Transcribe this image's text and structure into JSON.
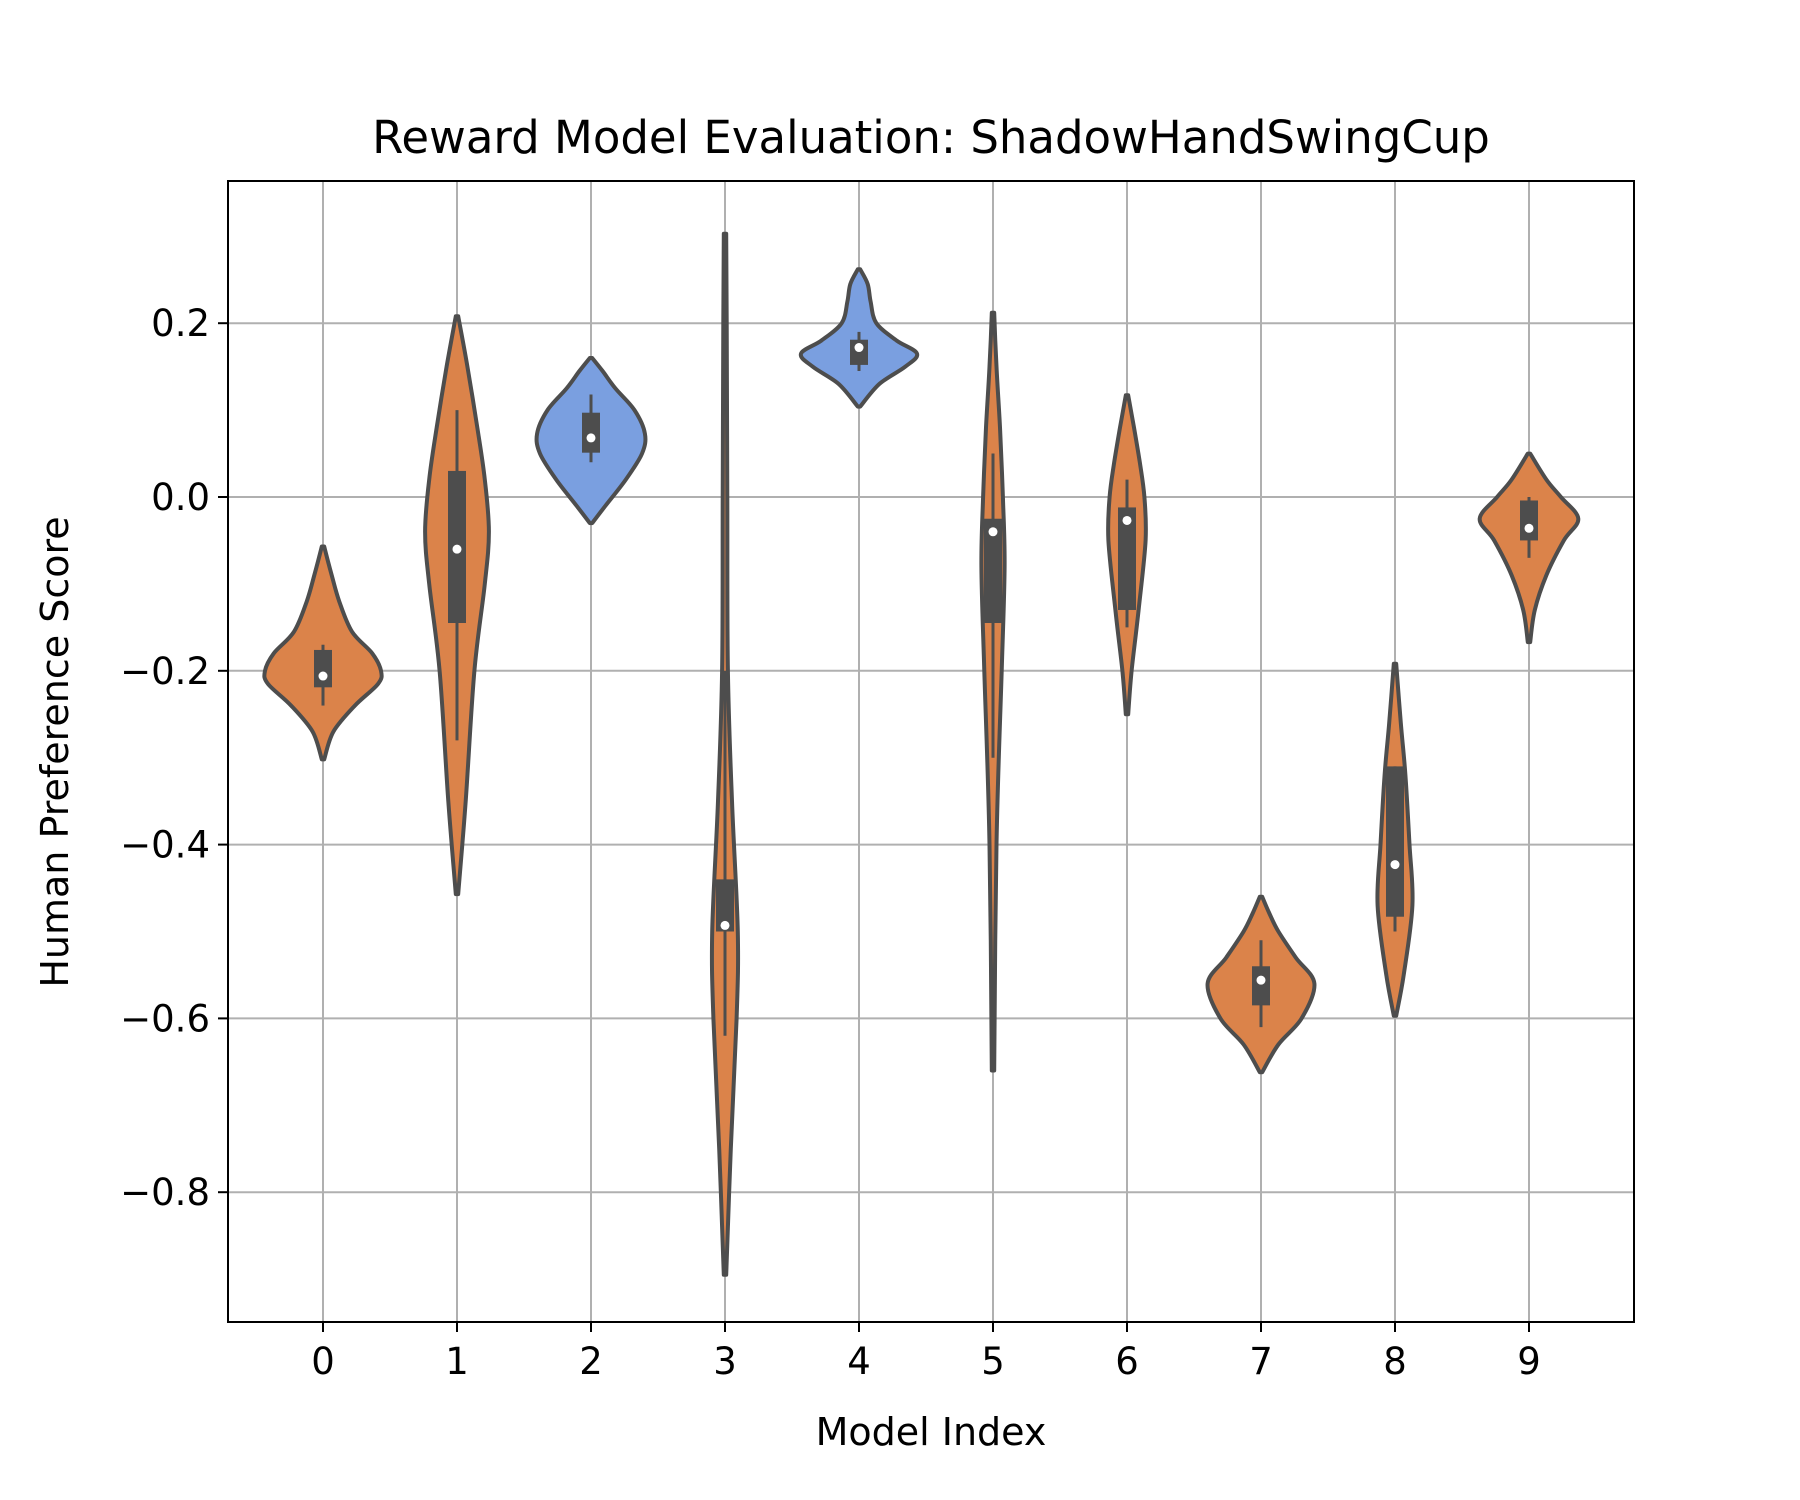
{
  "chart_data": {
    "type": "violin",
    "title": "Reward Model Evaluation: ShadowHandSwingCup",
    "xlabel": "Model Index",
    "ylabel": "Human Preference Score",
    "ylim": [
      -0.95,
      0.365
    ],
    "yticks": [
      0.2,
      0.0,
      -0.2,
      -0.4,
      -0.6,
      -0.8
    ],
    "ytick_labels": [
      "0.2",
      "0.0",
      "−0.2",
      "−0.4",
      "−0.6",
      "−0.8"
    ],
    "grid": true,
    "colors": {
      "positive": "#7a9fe0",
      "negative": "#db834a",
      "outline": "#4d4d4d",
      "grid": "#b0b0b0"
    },
    "categories": [
      "0",
      "1",
      "2",
      "3",
      "4",
      "5",
      "6",
      "7",
      "8",
      "9"
    ],
    "violins": [
      {
        "category": "0",
        "color": "negative",
        "median": -0.206,
        "q1": -0.219,
        "q3": -0.176,
        "whisker_low": -0.24,
        "whisker_high": -0.17,
        "min": -0.302,
        "max": -0.057,
        "profile": [
          [
            -0.302,
            0.02
          ],
          [
            -0.27,
            0.18
          ],
          [
            -0.24,
            0.55
          ],
          [
            -0.215,
            0.95
          ],
          [
            -0.2,
            1.0
          ],
          [
            -0.18,
            0.85
          ],
          [
            -0.155,
            0.5
          ],
          [
            -0.12,
            0.28
          ],
          [
            -0.09,
            0.15
          ],
          [
            -0.057,
            0.02
          ]
        ]
      },
      {
        "category": "1",
        "color": "negative",
        "median": -0.06,
        "q1": -0.145,
        "q3": 0.03,
        "whisker_low": -0.28,
        "whisker_high": 0.1,
        "min": -0.457,
        "max": 0.208,
        "profile": [
          [
            -0.457,
            0.02
          ],
          [
            -0.35,
            0.15
          ],
          [
            -0.2,
            0.3
          ],
          [
            -0.1,
            0.48
          ],
          [
            -0.04,
            0.55
          ],
          [
            0.02,
            0.48
          ],
          [
            0.08,
            0.35
          ],
          [
            0.15,
            0.18
          ],
          [
            0.208,
            0.02
          ]
        ]
      },
      {
        "category": "2",
        "color": "positive",
        "median": 0.068,
        "q1": 0.051,
        "q3": 0.097,
        "whisker_low": 0.04,
        "whisker_high": 0.118,
        "min": -0.03,
        "max": 0.16,
        "profile": [
          [
            -0.03,
            0.02
          ],
          [
            -0.01,
            0.25
          ],
          [
            0.02,
            0.6
          ],
          [
            0.05,
            0.88
          ],
          [
            0.073,
            0.93
          ],
          [
            0.1,
            0.75
          ],
          [
            0.125,
            0.42
          ],
          [
            0.145,
            0.2
          ],
          [
            0.16,
            0.02
          ]
        ]
      },
      {
        "category": "3",
        "color": "negative",
        "median": -0.493,
        "q1": -0.5,
        "q3": -0.44,
        "whisker_low": -0.62,
        "whisker_high": -0.2,
        "min": -0.895,
        "max": 0.303,
        "profile": [
          [
            -0.895,
            0.02
          ],
          [
            -0.75,
            0.1
          ],
          [
            -0.6,
            0.2
          ],
          [
            -0.5,
            0.22
          ],
          [
            -0.35,
            0.12
          ],
          [
            -0.2,
            0.05
          ],
          [
            0.0,
            0.04
          ],
          [
            0.2,
            0.03
          ],
          [
            0.303,
            0.02
          ]
        ]
      },
      {
        "category": "4",
        "color": "positive",
        "median": 0.172,
        "q1": 0.152,
        "q3": 0.181,
        "whisker_low": 0.145,
        "whisker_high": 0.19,
        "min": 0.104,
        "max": 0.262,
        "profile": [
          [
            0.104,
            0.02
          ],
          [
            0.13,
            0.35
          ],
          [
            0.15,
            0.8
          ],
          [
            0.165,
            1.0
          ],
          [
            0.18,
            0.65
          ],
          [
            0.2,
            0.3
          ],
          [
            0.225,
            0.2
          ],
          [
            0.245,
            0.15
          ],
          [
            0.262,
            0.02
          ]
        ]
      },
      {
        "category": "5",
        "color": "negative",
        "median": -0.04,
        "q1": -0.145,
        "q3": -0.025,
        "whisker_low": -0.3,
        "whisker_high": 0.05,
        "min": -0.66,
        "max": 0.212,
        "profile": [
          [
            -0.66,
            0.02
          ],
          [
            -0.4,
            0.06
          ],
          [
            -0.2,
            0.15
          ],
          [
            -0.08,
            0.2
          ],
          [
            0.0,
            0.17
          ],
          [
            0.08,
            0.12
          ],
          [
            0.15,
            0.06
          ],
          [
            0.212,
            0.02
          ]
        ]
      },
      {
        "category": "6",
        "color": "negative",
        "median": -0.027,
        "q1": -0.13,
        "q3": -0.012,
        "whisker_low": -0.15,
        "whisker_high": 0.02,
        "min": -0.25,
        "max": 0.117,
        "profile": [
          [
            -0.25,
            0.02
          ],
          [
            -0.2,
            0.08
          ],
          [
            -0.13,
            0.2
          ],
          [
            -0.05,
            0.32
          ],
          [
            0.0,
            0.3
          ],
          [
            0.04,
            0.22
          ],
          [
            0.08,
            0.12
          ],
          [
            0.117,
            0.02
          ]
        ]
      },
      {
        "category": "7",
        "color": "negative",
        "median": -0.556,
        "q1": -0.585,
        "q3": -0.54,
        "whisker_low": -0.61,
        "whisker_high": -0.51,
        "min": -0.662,
        "max": -0.46,
        "profile": [
          [
            -0.662,
            0.02
          ],
          [
            -0.63,
            0.3
          ],
          [
            -0.6,
            0.7
          ],
          [
            -0.56,
            0.92
          ],
          [
            -0.53,
            0.6
          ],
          [
            -0.5,
            0.3
          ],
          [
            -0.48,
            0.15
          ],
          [
            -0.46,
            0.02
          ]
        ]
      },
      {
        "category": "8",
        "color": "negative",
        "median": -0.423,
        "q1": -0.483,
        "q3": -0.31,
        "whisker_low": -0.5,
        "whisker_high": -0.31,
        "min": -0.597,
        "max": -0.192,
        "profile": [
          [
            -0.597,
            0.02
          ],
          [
            -0.55,
            0.15
          ],
          [
            -0.47,
            0.3
          ],
          [
            -0.4,
            0.25
          ],
          [
            -0.32,
            0.18
          ],
          [
            -0.26,
            0.1
          ],
          [
            -0.192,
            0.02
          ]
        ]
      },
      {
        "category": "9",
        "color": "negative",
        "median": -0.036,
        "q1": -0.05,
        "q3": -0.004,
        "whisker_low": -0.07,
        "whisker_high": 0.0,
        "min": -0.167,
        "max": 0.05,
        "profile": [
          [
            -0.167,
            0.02
          ],
          [
            -0.13,
            0.1
          ],
          [
            -0.09,
            0.3
          ],
          [
            -0.05,
            0.6
          ],
          [
            -0.025,
            0.85
          ],
          [
            0.0,
            0.55
          ],
          [
            0.02,
            0.3
          ],
          [
            0.05,
            0.02
          ]
        ]
      }
    ]
  }
}
